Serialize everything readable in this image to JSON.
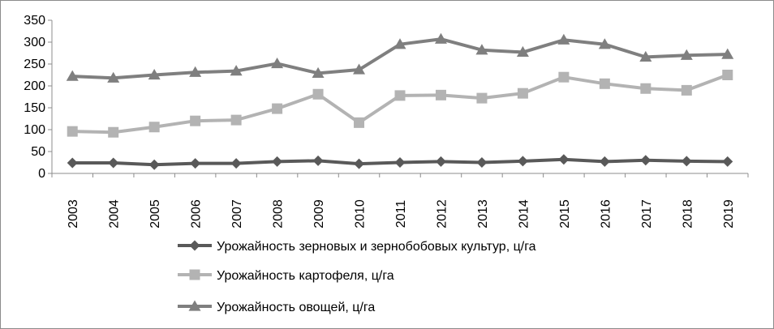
{
  "chart_data": {
    "type": "line",
    "title": "",
    "xlabel": "",
    "ylabel": "",
    "ylim": [
      0,
      350
    ],
    "yticks": [
      0,
      50,
      100,
      150,
      200,
      250,
      300,
      350
    ],
    "grid": false,
    "legend_position": "bottom",
    "x": [
      "2003",
      "2004",
      "2005",
      "2006",
      "2007",
      "2008",
      "2009",
      "2010",
      "2011",
      "2012",
      "2013",
      "2014",
      "2015",
      "2016",
      "2017",
      "2018",
      "2019"
    ],
    "series": [
      {
        "name": "Урожайность зерновых и зернобобовых культур, ц/га",
        "color": "#595959",
        "marker": "diamond",
        "values": [
          24,
          24,
          20,
          23,
          23,
          27,
          29,
          22,
          25,
          27,
          25,
          28,
          32,
          27,
          30,
          28,
          27
        ]
      },
      {
        "name": "Урожайность картофеля, ц/га",
        "color": "#b3b3b3",
        "marker": "square",
        "values": [
          96,
          94,
          106,
          120,
          122,
          148,
          181,
          116,
          178,
          179,
          172,
          183,
          220,
          205,
          194,
          190,
          225
        ]
      },
      {
        "name": "Урожайность овощей, ц/га",
        "color": "#7f7f7f",
        "marker": "triangle",
        "values": [
          222,
          218,
          225,
          231,
          234,
          251,
          229,
          237,
          295,
          307,
          282,
          277,
          305,
          295,
          266,
          270,
          272
        ]
      }
    ]
  }
}
